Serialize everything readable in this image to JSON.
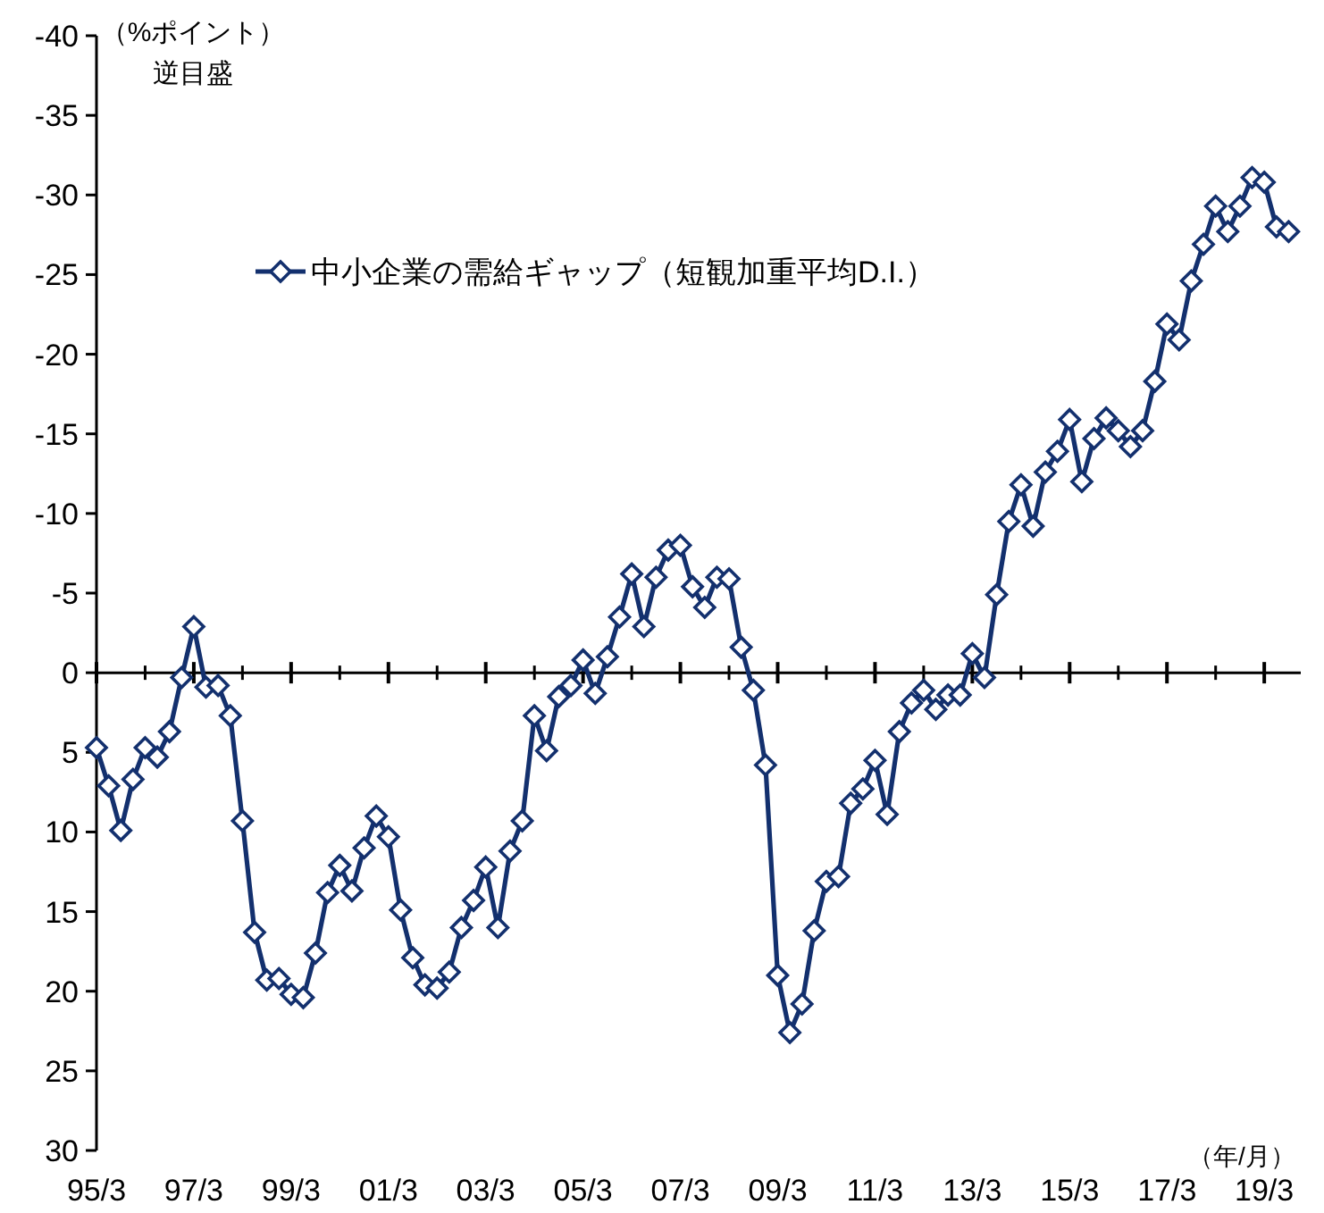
{
  "chart_data": {
    "type": "line",
    "ylabel": "（%ポイント）",
    "annotations": [
      "逆目盛"
    ],
    "xlabel": "（年/月）",
    "categories": [
      "95/3",
      null,
      null,
      null,
      null,
      null,
      null,
      null,
      "97/3",
      null,
      null,
      null,
      null,
      null,
      null,
      null,
      "99/3",
      null,
      null,
      null,
      null,
      null,
      null,
      null,
      "01/3",
      null,
      null,
      null,
      null,
      null,
      null,
      null,
      "03/3",
      null,
      null,
      null,
      null,
      null,
      null,
      null,
      "05/3",
      null,
      null,
      null,
      null,
      null,
      null,
      null,
      "07/3",
      null,
      null,
      null,
      null,
      null,
      null,
      null,
      "09/3",
      null,
      null,
      null,
      null,
      null,
      null,
      null,
      "11/3",
      null,
      null,
      null,
      null,
      null,
      null,
      null,
      "13/3",
      null,
      null,
      null,
      null,
      null,
      null,
      null,
      "15/3",
      null,
      null,
      null,
      null,
      null,
      null,
      null,
      "17/3",
      null,
      null,
      null,
      null,
      null,
      null,
      null,
      "19/3",
      null,
      null
    ],
    "series": [
      {
        "name": "中小企業の需給ギャップ（短観加重平均D.I.）",
        "color": "#13306e",
        "values": [
          4.7,
          7.1,
          9.9,
          6.7,
          4.7,
          5.3,
          3.7,
          0.3,
          -2.9,
          0.9,
          0.8,
          2.7,
          9.3,
          16.3,
          19.3,
          19.2,
          20.2,
          20.4,
          17.6,
          13.8,
          12.1,
          13.7,
          11.0,
          9.0,
          10.3,
          14.9,
          17.9,
          19.6,
          19.8,
          18.8,
          16.0,
          14.3,
          12.2,
          16.0,
          11.2,
          9.3,
          2.7,
          4.9,
          1.5,
          0.8,
          -0.8,
          1.3,
          -1.0,
          -3.5,
          -6.2,
          -2.9,
          -6.0,
          -7.7,
          -8.0,
          -5.4,
          -4.1,
          -6.0,
          -5.9,
          -1.6,
          1.1,
          5.8,
          19.0,
          22.6,
          20.8,
          16.2,
          13.1,
          12.8,
          8.2,
          7.3,
          5.5,
          8.9,
          3.7,
          1.9,
          1.1,
          2.3,
          1.4,
          1.4,
          -1.2,
          0.3,
          -4.9,
          -9.5,
          -11.8,
          -9.2,
          -12.6,
          -13.9,
          -15.9,
          -12.0,
          -14.7,
          -16.0,
          -15.2,
          -14.2,
          -15.2,
          -18.3,
          -21.9,
          -20.9,
          -24.6,
          -26.9,
          -29.3,
          -27.7,
          -29.3,
          -31.1,
          -30.8,
          -28.0,
          -27.7
        ]
      }
    ],
    "ylim": [
      30,
      -40
    ],
    "yticks": [
      -40,
      -35,
      -30,
      -25,
      -20,
      -15,
      -10,
      -5,
      0,
      5,
      10,
      15,
      20,
      25,
      30
    ],
    "marker": "diamond",
    "line_style": "solid",
    "legend": "top left"
  }
}
